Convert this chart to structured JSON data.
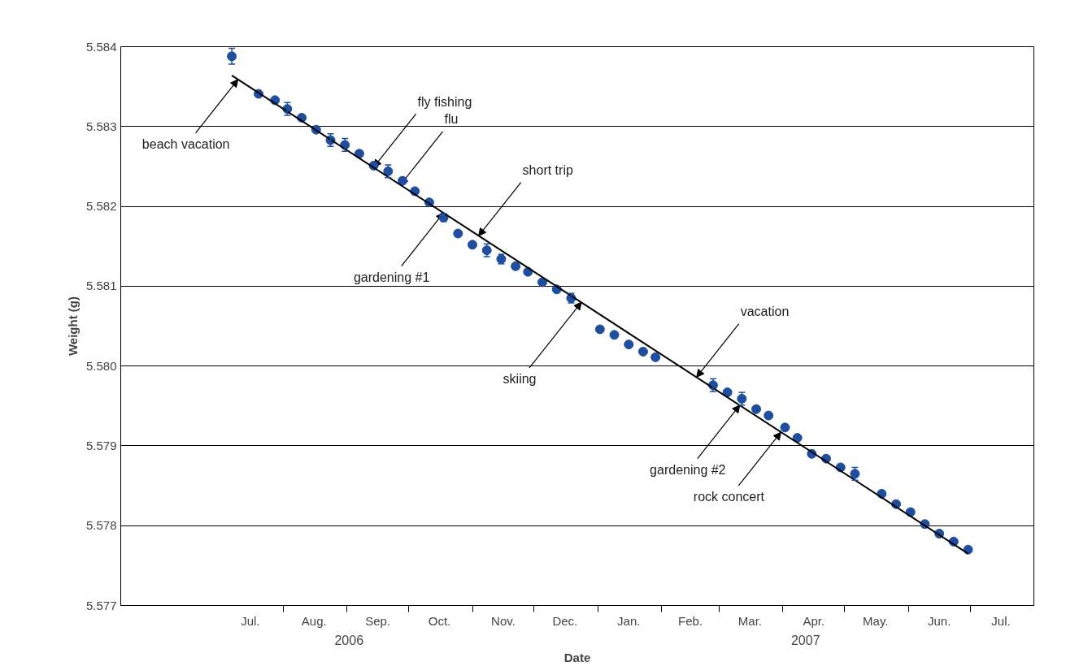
{
  "chart_data": {
    "type": "scatter",
    "xlabel": "Date",
    "ylabel": "Weight (g)",
    "grid": "y",
    "xlim": [
      "2006-05-14",
      "2007-08-01"
    ],
    "ylim": [
      5.577,
      5.584
    ],
    "yticks": [
      {
        "value": 5.577,
        "label": "5.577"
      },
      {
        "value": 5.578,
        "label": "5.578"
      },
      {
        "value": 5.579,
        "label": "5.579"
      },
      {
        "value": 5.58,
        "label": "5.580"
      },
      {
        "value": 5.581,
        "label": "5.581"
      },
      {
        "value": 5.582,
        "label": "5.582"
      },
      {
        "value": 5.583,
        "label": "5.583"
      },
      {
        "value": 5.584,
        "label": "5.584"
      }
    ],
    "xticks": [
      {
        "value": "2006-07-16",
        "label": "Jul."
      },
      {
        "value": "2006-08-01",
        "label": null
      },
      {
        "value": "2006-08-16",
        "label": "Aug."
      },
      {
        "value": "2006-09-01",
        "label": null
      },
      {
        "value": "2006-09-16",
        "label": "Sep."
      },
      {
        "value": "2006-10-01",
        "label": null
      },
      {
        "value": "2006-10-16",
        "label": "Oct."
      },
      {
        "value": "2006-11-01",
        "label": null
      },
      {
        "value": "2006-11-16",
        "label": "Nov."
      },
      {
        "value": "2006-12-01",
        "label": null
      },
      {
        "value": "2006-12-16",
        "label": "Dec."
      },
      {
        "value": "2007-01-01",
        "label": null
      },
      {
        "value": "2007-01-16",
        "label": "Jan."
      },
      {
        "value": "2007-02-01",
        "label": null
      },
      {
        "value": "2007-02-15",
        "label": "Feb."
      },
      {
        "value": "2007-03-01",
        "label": null
      },
      {
        "value": "2007-03-16",
        "label": "Mar."
      },
      {
        "value": "2007-04-01",
        "label": null
      },
      {
        "value": "2007-04-16",
        "label": "Apr."
      },
      {
        "value": "2007-05-01",
        "label": null
      },
      {
        "value": "2007-05-16",
        "label": "May."
      },
      {
        "value": "2007-06-01",
        "label": null
      },
      {
        "value": "2007-06-16",
        "label": "Jun."
      },
      {
        "value": "2007-07-01",
        "label": null
      },
      {
        "value": "2007-07-16",
        "label": "Jul."
      }
    ],
    "series": [
      {
        "color": "#1f4e9e",
        "marker": "circle",
        "x": [
          "2006-07-07",
          "2006-07-20",
          "2006-07-28",
          "2006-08-03",
          "2006-08-10",
          "2006-08-17",
          "2006-08-24",
          "2006-08-31",
          "2006-09-07",
          "2006-09-14",
          "2006-09-21",
          "2006-09-28",
          "2006-10-04",
          "2006-10-11",
          "2006-10-18",
          "2006-10-25",
          "2006-11-01",
          "2006-11-08",
          "2006-11-15",
          "2006-11-22",
          "2006-11-28",
          "2006-12-05",
          "2006-12-12",
          "2006-12-19",
          "2007-01-02",
          "2007-01-09",
          "2007-01-16",
          "2007-01-23",
          "2007-01-29",
          "2007-02-26",
          "2007-03-05",
          "2007-03-12",
          "2007-03-19",
          "2007-03-25",
          "2007-04-02",
          "2007-04-08",
          "2007-04-15",
          "2007-04-22",
          "2007-04-29",
          "2007-05-06",
          "2007-05-19",
          "2007-05-26",
          "2007-06-02",
          "2007-06-09",
          "2007-06-16",
          "2007-06-23",
          "2007-06-30"
        ],
        "values": [
          5.58388,
          5.58341,
          5.58333,
          5.58322,
          5.58311,
          5.58296,
          5.58283,
          5.58277,
          5.58266,
          5.58251,
          5.58244,
          5.58232,
          5.58219,
          5.58205,
          5.58186,
          5.58166,
          5.58152,
          5.58145,
          5.58134,
          5.58125,
          5.58118,
          5.58105,
          5.58096,
          5.58085,
          5.58046,
          5.58039,
          5.58027,
          5.58018,
          5.58011,
          5.57976,
          5.57967,
          5.57959,
          5.57946,
          5.57938,
          5.57923,
          5.5791,
          5.5789,
          5.57884,
          5.57873,
          5.57865,
          5.5784,
          5.57827,
          5.57817,
          5.57802,
          5.5779,
          5.5778,
          5.5777
        ],
        "errors": [
          0.0001,
          null,
          null,
          8e-05,
          null,
          null,
          8e-05,
          8e-05,
          null,
          null,
          8e-05,
          null,
          null,
          null,
          5e-05,
          null,
          null,
          8e-05,
          6e-05,
          null,
          null,
          null,
          null,
          6e-05,
          null,
          null,
          null,
          null,
          null,
          8e-05,
          null,
          8e-05,
          null,
          null,
          null,
          null,
          null,
          null,
          null,
          8e-05,
          null,
          null,
          null,
          null,
          null,
          null,
          null
        ]
      },
      {
        "type": "line",
        "color": "#000000",
        "marker": "none",
        "x": [
          "2006-07-07",
          "2007-06-30"
        ],
        "values": [
          5.58364,
          5.57765
        ]
      }
    ],
    "annotations": [
      {
        "text": "beach vacation",
        "x": "2006-07-10",
        "y": 5.58359
      },
      {
        "text": "fly fishing",
        "x": "2006-09-14",
        "y": 5.58249
      },
      {
        "text": "flu",
        "x": "2006-09-27",
        "y": 5.58227
      },
      {
        "text": "short trip",
        "x": "2006-11-04",
        "y": 5.58163
      },
      {
        "text": "gardening #1",
        "x": "2006-10-18",
        "y": 5.58192
      },
      {
        "text": "skiing",
        "x": "2006-12-24",
        "y": 5.5808
      },
      {
        "text": "vacation",
        "x": "2007-02-18",
        "y": 5.57986
      },
      {
        "text": "gardening #2",
        "x": "2007-03-11",
        "y": 5.57951
      },
      {
        "text": "rock concert",
        "x": "2007-03-31",
        "y": 5.57917
      },
      "2006",
      "2007"
    ]
  }
}
